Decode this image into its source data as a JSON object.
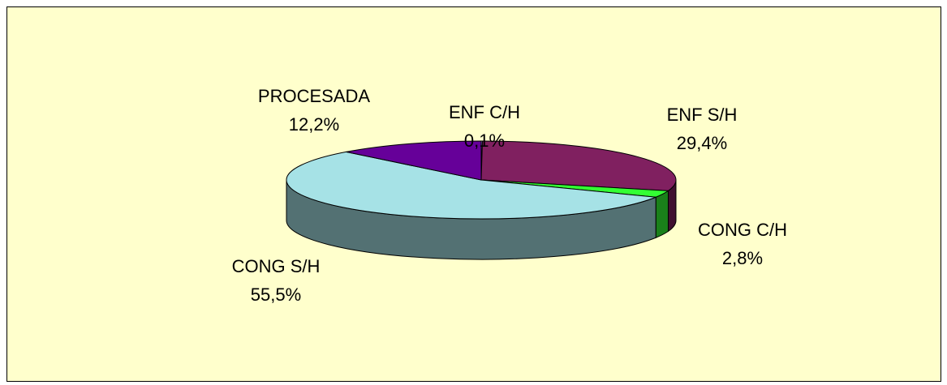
{
  "chart_data": {
    "type": "pie",
    "categories": [
      "ENF C/H",
      "ENF S/H",
      "CONG C/H",
      "CONG S/H",
      "PROCESADA"
    ],
    "values": [
      0.1,
      29.4,
      2.8,
      55.5,
      12.2
    ],
    "value_labels": [
      "0,1%",
      "29,4%",
      "2,8%",
      "55,5%",
      "12,2%"
    ],
    "colors": [
      "#9999ff",
      "#802060",
      "#33ff33",
      "#a6e2e6",
      "#660099"
    ]
  }
}
